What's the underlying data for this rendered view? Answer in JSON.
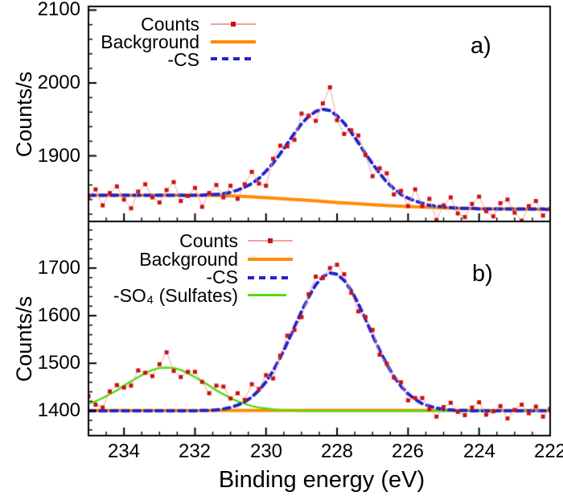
{
  "figure": {
    "xlabel": "Binding energy (eV)",
    "xtick_labels": [
      "234",
      "232",
      "230",
      "228",
      "226",
      "224",
      "222"
    ],
    "colors": {
      "counts": "#cc1111",
      "counts_line": "#f2a0a0",
      "background": "#ff8c00",
      "cs": "#2323cc",
      "so4": "#55dd11",
      "frame": "#000000"
    }
  },
  "chart_data": [
    {
      "type": "line",
      "panel_label": "a)",
      "ylabel": "Counts/s",
      "xlabel": "Binding energy (eV)",
      "xlim": [
        235,
        222
      ],
      "ylim": [
        1810,
        2105
      ],
      "xticks_major": [
        234,
        232,
        230,
        228,
        226,
        224,
        222
      ],
      "xtick_minor_step": 0.5,
      "yticks_major": [
        1900,
        2000,
        2100
      ],
      "ytick_labels": [
        "2100",
        "2000",
        "1900"
      ],
      "ytick_minor_step": 20,
      "legend_position": "top-center-inside",
      "grid": false,
      "legend": [
        {
          "label": "Counts"
        },
        {
          "label": "Background"
        },
        {
          "label": "-CS"
        }
      ],
      "x_grid": [
        235.0,
        234.8,
        234.6,
        234.4,
        234.2,
        234.0,
        233.8,
        233.6,
        233.4,
        233.2,
        233.0,
        232.8,
        232.6,
        232.4,
        232.2,
        232.0,
        231.8,
        231.6,
        231.4,
        231.2,
        231.0,
        230.8,
        230.6,
        230.4,
        230.2,
        230.0,
        229.8,
        229.6,
        229.4,
        229.2,
        229.0,
        228.8,
        228.6,
        228.4,
        228.2,
        228.0,
        227.8,
        227.6,
        227.4,
        227.2,
        227.0,
        226.8,
        226.6,
        226.4,
        226.2,
        226.0,
        225.8,
        225.6,
        225.4,
        225.2,
        225.0,
        224.8,
        224.6,
        224.4,
        224.2,
        224.0,
        223.8,
        223.6,
        223.4,
        223.2,
        223.0,
        222.8,
        222.6,
        222.4,
        222.2,
        222.0
      ],
      "series": [
        {
          "name": "Background",
          "kind": "line",
          "color": "#ff8c00",
          "width": 4,
          "x": [
            235,
            234.5,
            234,
            233.5,
            233,
            232.5,
            232,
            231.5,
            231,
            230.5,
            230,
            229.5,
            229,
            228.5,
            228,
            227.5,
            227,
            226.5,
            226,
            225.5,
            225,
            224.5,
            224,
            223.5,
            223,
            222.5,
            222
          ],
          "y": [
            1846,
            1846,
            1846,
            1846,
            1846,
            1846,
            1846,
            1845.5,
            1845,
            1844,
            1842.5,
            1841,
            1839.5,
            1838,
            1836,
            1834.5,
            1833,
            1831.5,
            1830.5,
            1829.5,
            1828.5,
            1828,
            1827.5,
            1827,
            1827,
            1826.5,
            1826.5
          ]
        },
        {
          "name": "-CS",
          "kind": "line",
          "color": "#2323cc",
          "width": 4,
          "dash": [
            8,
            6
          ],
          "y": [
            1846,
            1846,
            1846,
            1846,
            1846,
            1846,
            1846,
            1846,
            1846,
            1846,
            1846,
            1846,
            1846,
            1846,
            1846,
            1846,
            1846,
            1847,
            1847,
            1848,
            1850,
            1853,
            1857,
            1862,
            1869,
            1879,
            1890,
            1903,
            1917,
            1931,
            1944,
            1954,
            1961,
            1964,
            1962,
            1955,
            1945,
            1932,
            1918,
            1903,
            1889,
            1876,
            1864,
            1855,
            1847,
            1842,
            1838,
            1835,
            1832,
            1831,
            1830,
            1829,
            1828,
            1828,
            1828,
            1827,
            1827,
            1827,
            1827,
            1827,
            1827,
            1827,
            1827,
            1827,
            1827,
            1826
          ]
        },
        {
          "name": "Counts",
          "kind": "scatter-line",
          "color": "#cc1111",
          "line_color": "#f2a0a0",
          "marker": "square",
          "y": [
            1844,
            1854,
            1832,
            1849,
            1858,
            1840,
            1828,
            1851,
            1861,
            1843,
            1836,
            1853,
            1864,
            1838,
            1845,
            1856,
            1830,
            1849,
            1860,
            1843,
            1859,
            1841,
            1861,
            1878,
            1862,
            1859,
            1896,
            1914,
            1913,
            1922,
            1958,
            1955,
            1948,
            1972,
            1994,
            1949,
            1930,
            1935,
            1928,
            1901,
            1872,
            1883,
            1876,
            1847,
            1852,
            1831,
            1854,
            1831,
            1841,
            1812,
            1832,
            1843,
            1821,
            1816,
            1834,
            1844,
            1824,
            1817,
            1835,
            1840,
            1822,
            1811,
            1831,
            1838,
            1818,
            1827
          ]
        }
      ]
    },
    {
      "type": "line",
      "panel_label": "b)",
      "ylabel": "Counts/s",
      "xlabel": "Binding energy (eV)",
      "xlim": [
        235,
        222
      ],
      "ylim": [
        1348,
        1798
      ],
      "xticks_major": [
        234,
        232,
        230,
        228,
        226,
        224,
        222
      ],
      "xtick_minor_step": 0.5,
      "yticks_major": [
        1400,
        1500,
        1600,
        1700
      ],
      "ytick_labels": [
        "1700",
        "1600",
        "1500",
        "1400"
      ],
      "ytick_minor_step": 20,
      "legend_position": "top-center-inside",
      "grid": false,
      "legend": [
        {
          "label": "Counts"
        },
        {
          "label": "Background"
        },
        {
          "label": "-CS"
        },
        {
          "label": "-SO₄ (Sulfates)"
        }
      ],
      "x_grid": [
        235.0,
        234.8,
        234.6,
        234.4,
        234.2,
        234.0,
        233.8,
        233.6,
        233.4,
        233.2,
        233.0,
        232.8,
        232.6,
        232.4,
        232.2,
        232.0,
        231.8,
        231.6,
        231.4,
        231.2,
        231.0,
        230.8,
        230.6,
        230.4,
        230.2,
        230.0,
        229.8,
        229.6,
        229.4,
        229.2,
        229.0,
        228.8,
        228.6,
        228.4,
        228.2,
        228.0,
        227.8,
        227.6,
        227.4,
        227.2,
        227.0,
        226.8,
        226.6,
        226.4,
        226.2,
        226.0,
        225.8,
        225.6,
        225.4,
        225.2,
        225.0,
        224.8,
        224.6,
        224.4,
        224.2,
        224.0,
        223.8,
        223.6,
        223.4,
        223.2,
        223.0,
        222.8,
        222.6,
        222.4,
        222.2,
        222.0
      ],
      "series": [
        {
          "name": "Background",
          "kind": "line",
          "color": "#ff8c00",
          "width": 4,
          "x": [
            235,
            222
          ],
          "y": [
            1401,
            1401
          ]
        },
        {
          "name": "-SO₄ (Sulfates)",
          "kind": "line",
          "color": "#55dd11",
          "width": 2.5,
          "y": [
            1415,
            1420,
            1427,
            1435,
            1443,
            1453,
            1462,
            1471,
            1479,
            1486,
            1490,
            1491,
            1490,
            1486,
            1479,
            1471,
            1462,
            1453,
            1443,
            1435,
            1427,
            1420,
            1415,
            1410,
            1407,
            1405,
            1403,
            1402,
            1401,
            1401,
            1400,
            1400,
            1400,
            1400,
            1400,
            1400,
            1400,
            1400,
            1400,
            1400,
            1400,
            1400,
            1400,
            1400,
            1400,
            1400,
            1400,
            1400,
            1400,
            1400,
            1400,
            1400,
            1400,
            1400,
            1400,
            1400,
            1400,
            1400,
            1400,
            1400,
            1400,
            1400,
            1400,
            1400,
            1400,
            1400
          ]
        },
        {
          "name": "-CS",
          "kind": "line",
          "color": "#2323cc",
          "width": 4,
          "dash": [
            8,
            6
          ],
          "y": [
            1400,
            1400,
            1400,
            1400,
            1400,
            1400,
            1400,
            1400,
            1400,
            1400,
            1400,
            1400,
            1400,
            1400,
            1400,
            1400,
            1401,
            1401,
            1402,
            1404,
            1407,
            1412,
            1419,
            1429,
            1443,
            1461,
            1484,
            1512,
            1543,
            1576,
            1609,
            1639,
            1665,
            1682,
            1690,
            1687,
            1674,
            1653,
            1625,
            1593,
            1559,
            1527,
            1498,
            1472,
            1452,
            1436,
            1424,
            1415,
            1410,
            1406,
            1403,
            1402,
            1401,
            1401,
            1400,
            1400,
            1400,
            1400,
            1400,
            1400,
            1400,
            1400,
            1400,
            1400,
            1400,
            1400
          ]
        },
        {
          "name": "Counts",
          "kind": "scatter-line",
          "color": "#cc1111",
          "line_color": "#f2a0a0",
          "marker": "square",
          "y": [
            1431,
            1413,
            1407,
            1441,
            1454,
            1449,
            1453,
            1485,
            1480,
            1473,
            1498,
            1523,
            1484,
            1471,
            1482,
            1482,
            1461,
            1437,
            1453,
            1451,
            1426,
            1437,
            1423,
            1456,
            1446,
            1475,
            1468,
            1516,
            1558,
            1570,
            1597,
            1645,
            1682,
            1679,
            1700,
            1707,
            1687,
            1648,
            1609,
            1597,
            1570,
            1518,
            1499,
            1470,
            1460,
            1422,
            1427,
            1427,
            1404,
            1388,
            1408,
            1417,
            1398,
            1391,
            1407,
            1418,
            1392,
            1399,
            1410,
            1384,
            1402,
            1413,
            1395,
            1409,
            1388,
            1404
          ]
        }
      ]
    }
  ]
}
